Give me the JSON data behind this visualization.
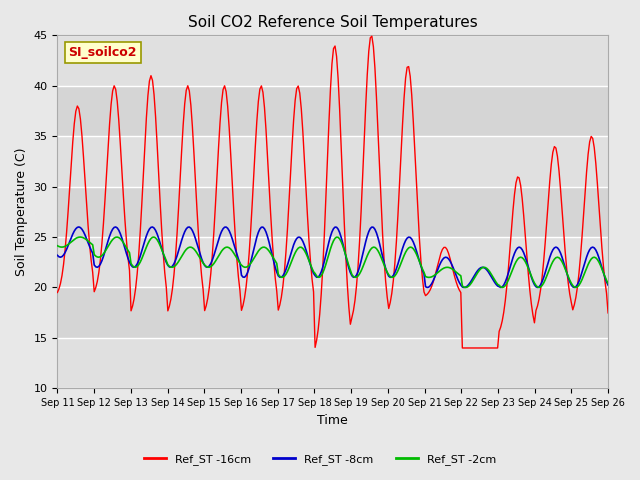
{
  "title": "Soil CO2 Reference Soil Temperatures",
  "xlabel": "Time",
  "ylabel": "Soil Temperature (C)",
  "ylim": [
    10,
    45
  ],
  "xlim_days": [
    0,
    15
  ],
  "fig_bg_color": "#e8e8e8",
  "plot_bg_color": "#e0e0e0",
  "grid_color": "#ffffff",
  "label_box_text": "SI_soilco2",
  "label_box_color": "#ffffcc",
  "label_box_text_color": "#cc0000",
  "legend_labels": [
    "Ref_ST -16cm",
    "Ref_ST -8cm",
    "Ref_ST -2cm"
  ],
  "legend_colors": [
    "#ff0000",
    "#0000cc",
    "#00bb00"
  ],
  "tick_labels": [
    "Sep 11",
    "Sep 12",
    "Sep 13",
    "Sep 14",
    "Sep 15",
    "Sep 16",
    "Sep 17",
    "Sep 18",
    "Sep 19",
    "Sep 20",
    "Sep 21",
    "Sep 22",
    "Sep 23",
    "Sep 24",
    "Sep 25",
    "Sep 26"
  ],
  "title_fontsize": 11,
  "axis_label_fontsize": 9,
  "tick_fontsize": 7,
  "legend_fontsize": 8
}
